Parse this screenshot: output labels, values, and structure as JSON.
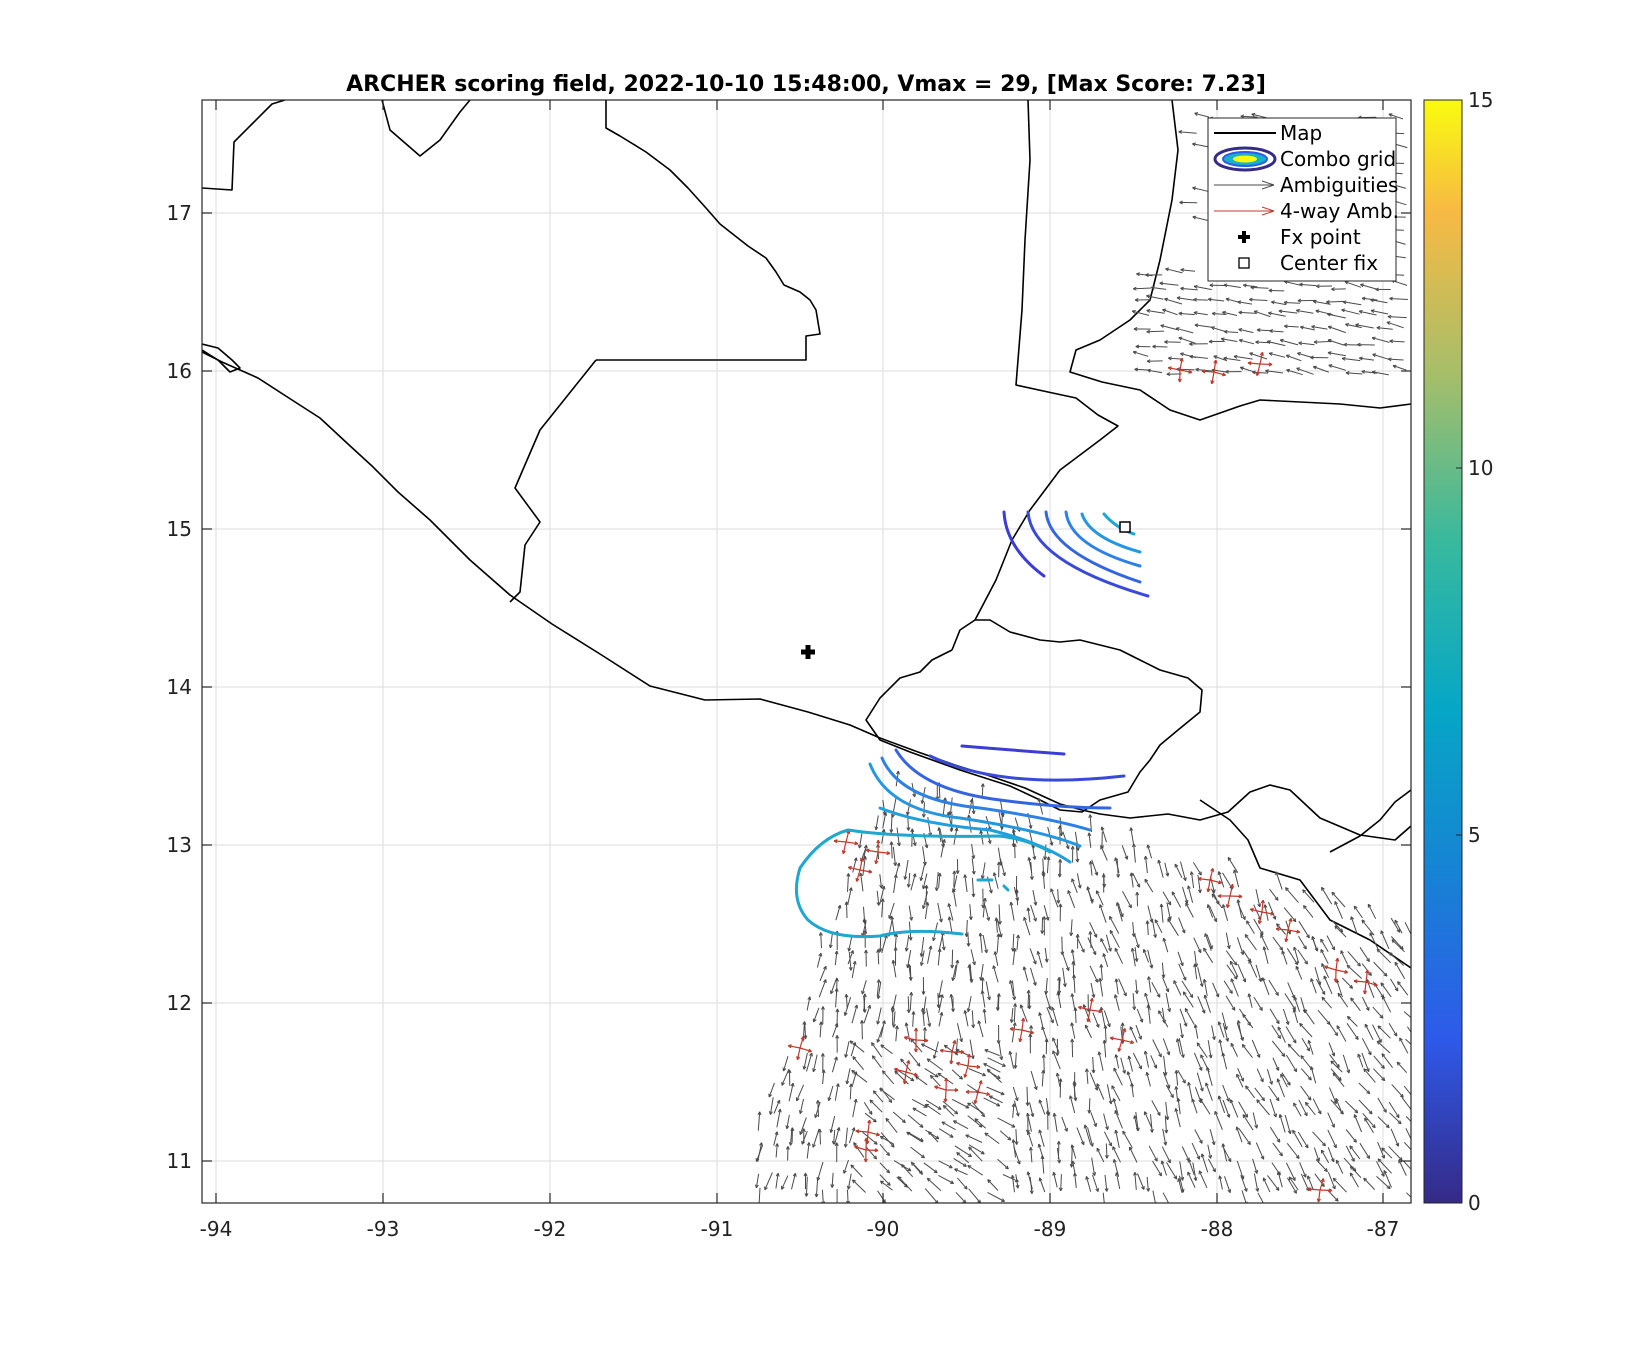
{
  "figure": {
    "title": "ARCHER scoring field, 2022-10-10 15:48:00, Vmax = 29, [Max Score: 7.23]"
  },
  "chart_data": {
    "type": "map",
    "title": "ARCHER scoring field, 2022-10-10 15:48:00, Vmax = 29, [Max Score: 7.23]",
    "xlim": [
      -94.1,
      -86.8
    ],
    "ylim": [
      10.7,
      17.7
    ],
    "xticks": [
      -94,
      -93,
      -92,
      -91,
      -90,
      -89,
      -88,
      -87
    ],
    "yticks": [
      11,
      12,
      13,
      14,
      15,
      16,
      17
    ],
    "xtick_labels": [
      "-94",
      "-93",
      "-92",
      "-91",
      "-90",
      "-89",
      "-88",
      "-87"
    ],
    "ytick_labels": [
      "11",
      "12",
      "13",
      "14",
      "15",
      "16",
      "17"
    ],
    "grid": true,
    "colorbar": {
      "min": 0,
      "max": 15,
      "ticks": [
        "0",
        "5",
        "10",
        "15"
      ],
      "colormap": "parula"
    },
    "legend": {
      "position": "top-right",
      "entries": [
        {
          "label": "Map",
          "symbol": "line"
        },
        {
          "label": "Combo grid",
          "symbol": "ellipse"
        },
        {
          "label": "Ambiguities",
          "symbol": "gray-arrow"
        },
        {
          "label": "4-way Amb.",
          "symbol": "red-arrow"
        },
        {
          "label": "Fx point",
          "symbol": "plus"
        },
        {
          "label": "Center fix",
          "symbol": "square"
        }
      ]
    },
    "fx_point": {
      "lon": -90.42,
      "lat": 14.2
    },
    "center_fix": {
      "lon": -88.57,
      "lat": 15.01
    },
    "max_score": 7.23,
    "colors": {
      "coastline": "#000000",
      "ambiguities": "#4a4a4a",
      "four_way_amb": "#c0392b",
      "contour_low": "#3c3cd6",
      "contour_mid": "#2f7fe8",
      "contour_high": "#1ea7d0"
    }
  }
}
